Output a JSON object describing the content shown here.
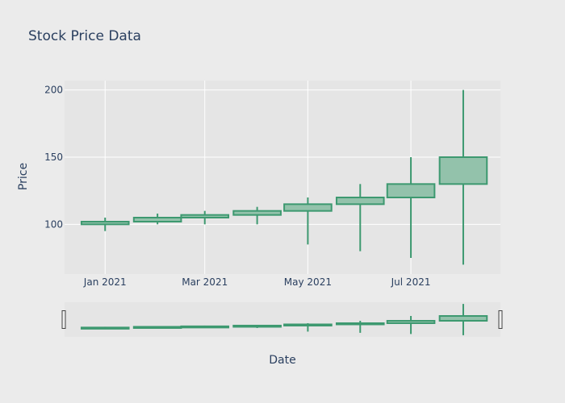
{
  "chart_data": {
    "type": "candlestick",
    "title": "Stock Price Data",
    "xlabel": "Date",
    "ylabel": "Price",
    "x_tick_labels": [
      "Jan 2021",
      "Mar 2021",
      "May 2021",
      "Jul 2021"
    ],
    "x_tick_dates": [
      "2021-01-01",
      "2021-03-01",
      "2021-05-01",
      "2021-07-01"
    ],
    "y_ticks": [
      100,
      150,
      200
    ],
    "ylim": [
      63,
      207
    ],
    "xlim": [
      "2020-12-08",
      "2021-08-23"
    ],
    "increasing_color": "#3d9970",
    "increasing_fill": "#93c2ab",
    "range_slider": true,
    "grid": true,
    "candles": [
      {
        "date": "2021-01-01",
        "open": 100,
        "high": 105,
        "low": 95,
        "close": 102
      },
      {
        "date": "2021-02-01",
        "open": 102,
        "high": 108,
        "low": 100,
        "close": 105
      },
      {
        "date": "2021-03-01",
        "open": 105,
        "high": 110,
        "low": 100,
        "close": 107
      },
      {
        "date": "2021-04-01",
        "open": 107,
        "high": 113,
        "low": 100,
        "close": 110
      },
      {
        "date": "2021-05-01",
        "open": 110,
        "high": 120,
        "low": 85,
        "close": 115
      },
      {
        "date": "2021-06-01",
        "open": 115,
        "high": 130,
        "low": 80,
        "close": 120
      },
      {
        "date": "2021-07-01",
        "open": 120,
        "high": 150,
        "low": 75,
        "close": 130
      },
      {
        "date": "2021-08-01",
        "open": 130,
        "high": 200,
        "low": 70,
        "close": 150
      }
    ]
  }
}
